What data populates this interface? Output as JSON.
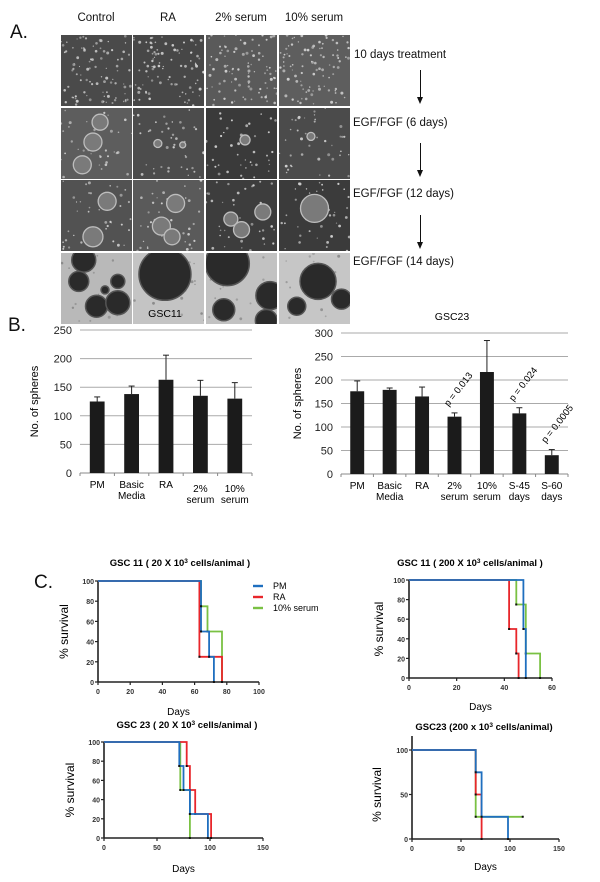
{
  "panel_a": {
    "letter": "A.",
    "columns": [
      "Control",
      "RA",
      "2% serum",
      "10% serum"
    ],
    "steps": [
      "10 days treatment",
      "EGF/FGF (6 days)",
      "EGF/FGF (12 days)",
      "EGF/FGF (14 days)"
    ]
  },
  "panel_b": {
    "letter": "B."
  },
  "panel_c": {
    "letter": "C.",
    "legend": [
      {
        "label": "PM",
        "color": "#1f6fbf"
      },
      {
        "label": "RA",
        "color": "#e8262b"
      },
      {
        "label": "10% serum",
        "color": "#7ac143"
      }
    ]
  },
  "chart_data": [
    {
      "id": "gsc11_bar",
      "type": "bar",
      "title": "GSC11",
      "xlabel": "",
      "ylabel": "No. of spheres",
      "categories": [
        "PM",
        "Basic\nMedia",
        "RA",
        "2%\nserum",
        "10%\nserum"
      ],
      "values": [
        125,
        138,
        163,
        135,
        130
      ],
      "error_upper": [
        133,
        152,
        206,
        162,
        158
      ],
      "ylim": [
        0,
        250
      ],
      "yticks": [
        0,
        50,
        100,
        150,
        200,
        250
      ],
      "grid": true,
      "annotations": []
    },
    {
      "id": "gsc23_bar",
      "type": "bar",
      "title": "GSC23",
      "xlabel": "",
      "ylabel": "No. of spheres",
      "categories": [
        "PM",
        "Basic\nMedia",
        "RA",
        "2%\nserum",
        "10%\nserum",
        "S-45\ndays",
        "S-60\ndays"
      ],
      "values": [
        176,
        179,
        165,
        122,
        217,
        129,
        40
      ],
      "error_upper": [
        198,
        183,
        185,
        130,
        284,
        141,
        52
      ],
      "ylim": [
        0,
        300
      ],
      "yticks": [
        0,
        50,
        100,
        150,
        200,
        250,
        300
      ],
      "grid": true,
      "annotations": [
        {
          "category": "2%\nserum",
          "text": "p = 0.013"
        },
        {
          "category": "S-45\ndays",
          "text": "p = 0.024"
        },
        {
          "category": "S-60\ndays",
          "text": "p = 0.0005"
        }
      ]
    },
    {
      "id": "gsc11_20k_km",
      "type": "line",
      "title": "GSC 11 ( 20 X 10³ cells/animal )",
      "xlabel": "Days",
      "ylabel": "% survival",
      "xlim": [
        0,
        100
      ],
      "ylim": [
        0,
        100
      ],
      "xticks": [
        0,
        20,
        40,
        60,
        80,
        100
      ],
      "yticks": [
        0,
        20,
        40,
        60,
        80,
        100
      ],
      "series": [
        {
          "name": "PM",
          "color": "#1f6fbf",
          "steps": [
            [
              0,
              100
            ],
            [
              64,
              100
            ],
            [
              64,
              75
            ],
            [
              64,
              50
            ],
            [
              69,
              50
            ],
            [
              69,
              25
            ],
            [
              72,
              25
            ],
            [
              72,
              0
            ]
          ]
        },
        {
          "name": "RA",
          "color": "#e8262b",
          "steps": [
            [
              0,
              100
            ],
            [
              63,
              100
            ],
            [
              63,
              25
            ],
            [
              77,
              25
            ],
            [
              77,
              0
            ]
          ]
        },
        {
          "name": "10% serum",
          "color": "#7ac143",
          "steps": [
            [
              0,
              100
            ],
            [
              64,
              100
            ],
            [
              64,
              75
            ],
            [
              68,
              75
            ],
            [
              68,
              50
            ],
            [
              77,
              50
            ],
            [
              77,
              0
            ]
          ]
        }
      ]
    },
    {
      "id": "gsc11_200k_km",
      "type": "line",
      "title": "GSC 11 ( 200 X 10³ cells/animal )",
      "xlabel": "Days",
      "ylabel": "% survival",
      "xlim": [
        0,
        60
      ],
      "ylim": [
        0,
        100
      ],
      "xticks": [
        0,
        20,
        40,
        60
      ],
      "yticks": [
        0,
        20,
        40,
        60,
        80,
        100
      ],
      "series": [
        {
          "name": "PM",
          "color": "#1f6fbf",
          "steps": [
            [
              0,
              100
            ],
            [
              48,
              100
            ],
            [
              48,
              50
            ],
            [
              49,
              50
            ],
            [
              49,
              0
            ]
          ]
        },
        {
          "name": "RA",
          "color": "#e8262b",
          "steps": [
            [
              0,
              100
            ],
            [
              42,
              100
            ],
            [
              42,
              50
            ],
            [
              45,
              50
            ],
            [
              45,
              25
            ],
            [
              46,
              25
            ],
            [
              46,
              0
            ]
          ]
        },
        {
          "name": "10% serum",
          "color": "#7ac143",
          "steps": [
            [
              0,
              100
            ],
            [
              45,
              100
            ],
            [
              45,
              75
            ],
            [
              49,
              75
            ],
            [
              49,
              25
            ],
            [
              55,
              25
            ],
            [
              55,
              0
            ]
          ]
        }
      ]
    },
    {
      "id": "gsc23_20k_km",
      "type": "line",
      "title": "GSC 23 ( 20 X 10³ cells/animal )",
      "xlabel": "Days",
      "ylabel": "% survival",
      "xlim": [
        0,
        150
      ],
      "ylim": [
        0,
        100
      ],
      "xticks": [
        0,
        50,
        100,
        150
      ],
      "yticks": [
        0,
        20,
        40,
        60,
        80,
        100
      ],
      "series": [
        {
          "name": "PM",
          "color": "#1f6fbf",
          "steps": [
            [
              0,
              100
            ],
            [
              71,
              100
            ],
            [
              71,
              75
            ],
            [
              75,
              75
            ],
            [
              75,
              50
            ],
            [
              81,
              50
            ],
            [
              81,
              25
            ],
            [
              98,
              25
            ],
            [
              98,
              0
            ]
          ]
        },
        {
          "name": "RA",
          "color": "#e8262b",
          "steps": [
            [
              0,
              100
            ],
            [
              78,
              100
            ],
            [
              78,
              75
            ],
            [
              81,
              75
            ],
            [
              81,
              50
            ],
            [
              86,
              50
            ],
            [
              86,
              25
            ],
            [
              101,
              25
            ],
            [
              101,
              0
            ]
          ]
        },
        {
          "name": "10% serum",
          "color": "#7ac143",
          "steps": [
            [
              0,
              100
            ],
            [
              72,
              100
            ],
            [
              72,
              50
            ],
            [
              81,
              50
            ],
            [
              81,
              0
            ]
          ]
        }
      ]
    },
    {
      "id": "gsc23_200k_km",
      "type": "line",
      "title": "GSC23 (200 x 10³ cells/animal)",
      "xlabel": "Days",
      "ylabel": "% survival",
      "xlim": [
        0,
        150
      ],
      "ylim": [
        0,
        100
      ],
      "xticks": [
        0,
        50,
        100,
        150
      ],
      "yticks": [
        0,
        50,
        100
      ],
      "series": [
        {
          "name": "PM",
          "color": "#1f6fbf",
          "steps": [
            [
              0,
              100
            ],
            [
              65,
              100
            ],
            [
              65,
              75
            ],
            [
              71,
              75
            ],
            [
              71,
              25
            ],
            [
              98,
              25
            ],
            [
              98,
              0
            ]
          ]
        },
        {
          "name": "RA",
          "color": "#e8262b",
          "steps": [
            [
              0,
              100
            ],
            [
              65,
              100
            ],
            [
              65,
              50
            ],
            [
              71,
              50
            ],
            [
              71,
              0
            ]
          ]
        },
        {
          "name": "10% serum",
          "color": "#7ac143",
          "steps": [
            [
              0,
              100
            ],
            [
              65,
              100
            ],
            [
              65,
              25
            ],
            [
              113,
              25
            ]
          ]
        }
      ]
    }
  ]
}
